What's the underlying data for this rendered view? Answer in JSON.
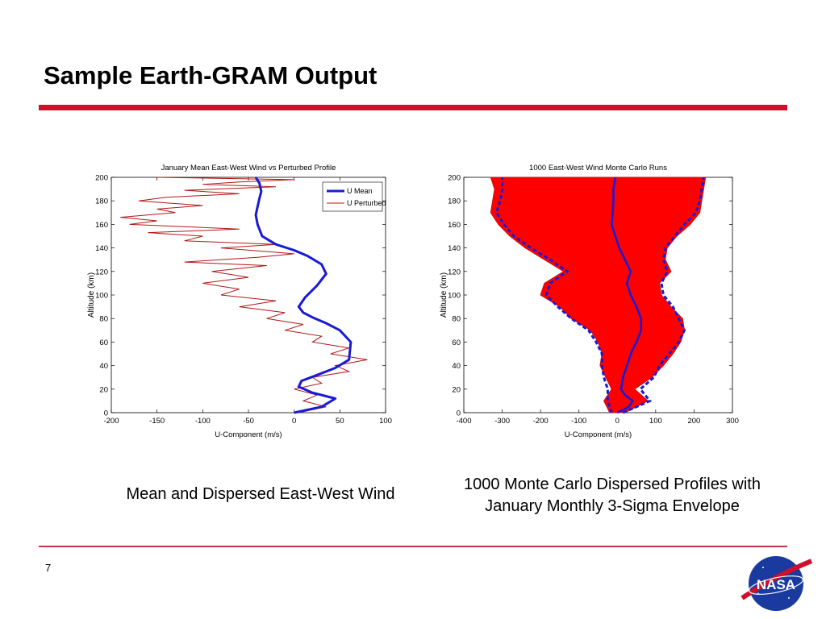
{
  "slide": {
    "title": "Sample Earth-GRAM Output",
    "page_number": "7",
    "caption_left": "Mean and Dispersed East-West Wind",
    "caption_right_line1": "1000 Monte Carlo Dispersed Profiles with",
    "caption_right_line2": "January Monthly 3-Sigma Envelope",
    "logo_text": "NASA"
  },
  "colors": {
    "title_rule": "#d0102a",
    "mean_line": "#1a1ad6",
    "perturbed_line": "#b01818",
    "monte_carlo_fill": "#ff0000",
    "envelope_line": "#1a1ad6"
  },
  "chart_data": [
    {
      "type": "line",
      "title": "January Mean East-West Wind vs Perturbed Profile",
      "xlabel": "U-Component (m/s)",
      "ylabel": "Altitude (km)",
      "xlim": [
        -200,
        100
      ],
      "ylim": [
        0,
        200
      ],
      "xticks": [
        -200,
        -150,
        -100,
        -50,
        0,
        50,
        100
      ],
      "yticks": [
        0,
        20,
        40,
        60,
        80,
        100,
        120,
        140,
        160,
        180,
        200
      ],
      "legend": "top-right",
      "series": [
        {
          "name": "U Mean",
          "color": "#1a1ad6",
          "x": [
            0,
            30,
            45,
            20,
            5,
            8,
            25,
            45,
            60,
            62,
            50,
            35,
            20,
            10,
            5,
            12,
            25,
            35,
            30,
            15,
            0,
            -20,
            -35,
            -40,
            -42,
            -40,
            -38,
            -36,
            -38,
            -42
          ],
          "y": [
            0,
            5,
            12,
            17,
            22,
            27,
            32,
            38,
            45,
            60,
            70,
            76,
            81,
            85,
            90,
            98,
            108,
            118,
            126,
            133,
            138,
            143,
            150,
            160,
            168,
            175,
            182,
            188,
            195,
            200
          ]
        },
        {
          "name": "U Perturbed",
          "color": "#b01818",
          "x": [
            5,
            35,
            10,
            25,
            0,
            30,
            20,
            60,
            45,
            80,
            40,
            60,
            20,
            30,
            -10,
            10,
            -30,
            -10,
            -60,
            -20,
            -80,
            -60,
            -100,
            -50,
            -90,
            -30,
            -120,
            -40,
            0,
            -80,
            -20,
            -120,
            -100,
            -160,
            -60,
            -180,
            -150,
            -190,
            -130,
            -150,
            -100,
            -170,
            -140,
            -60,
            -120,
            -20,
            -100,
            -60,
            0,
            -150
          ],
          "y": [
            0,
            5,
            10,
            15,
            20,
            25,
            30,
            35,
            40,
            45,
            50,
            55,
            60,
            65,
            70,
            75,
            80,
            85,
            90,
            95,
            100,
            105,
            110,
            115,
            120,
            125,
            128,
            132,
            135,
            140,
            143,
            146,
            150,
            153,
            156,
            160,
            163,
            166,
            170,
            173,
            176,
            180,
            183,
            186,
            189,
            192,
            194,
            196,
            198,
            200
          ]
        }
      ]
    },
    {
      "type": "area",
      "title": "1000 East-West Wind Monte Carlo Runs",
      "xlabel": "U-Component (m/s)",
      "ylabel": "Altitude (km)",
      "xlim": [
        -400,
        300
      ],
      "ylim": [
        0,
        200
      ],
      "xticks": [
        -400,
        -300,
        -200,
        -100,
        0,
        100,
        200,
        300
      ],
      "yticks": [
        0,
        20,
        40,
        60,
        80,
        100,
        120,
        140,
        160,
        180,
        200
      ],
      "series": [
        {
          "name": "",
          "color": "#ff0000",
          "y": [
            0,
            10,
            20,
            30,
            40,
            50,
            60,
            70,
            80,
            90,
            100,
            110,
            120,
            130,
            140,
            150,
            160,
            170,
            180,
            190,
            200
          ],
          "lower": [
            -20,
            -35,
            -15,
            -30,
            -45,
            -40,
            -50,
            -70,
            -120,
            -150,
            -200,
            -190,
            -140,
            -190,
            -240,
            -280,
            -310,
            -330,
            -325,
            -320,
            -330
          ],
          "upper": [
            20,
            80,
            45,
            90,
            120,
            145,
            165,
            175,
            170,
            140,
            115,
            110,
            140,
            125,
            130,
            155,
            190,
            215,
            220,
            225,
            230
          ]
        },
        {
          "name": "",
          "color": "#1a1ad6",
          "y": [
            0,
            5,
            10,
            15,
            20,
            30,
            40,
            50,
            60,
            70,
            80,
            90,
            100,
            110,
            120,
            130,
            140,
            150,
            160,
            170,
            180,
            190,
            200
          ],
          "x": [
            0,
            30,
            40,
            20,
            10,
            15,
            25,
            35,
            50,
            62,
            62,
            50,
            35,
            25,
            35,
            20,
            5,
            -5,
            -15,
            -12,
            -10,
            -10,
            -5
          ]
        },
        {
          "name": "",
          "color": "#1a1ad6",
          "y": [
            0,
            10,
            20,
            30,
            40,
            50,
            60,
            70,
            80,
            90,
            100,
            110,
            120,
            130,
            140,
            150,
            160,
            170,
            180,
            190,
            200
          ],
          "x": [
            -15,
            -25,
            -25,
            -35,
            -40,
            -40,
            -55,
            -75,
            -120,
            -155,
            -185,
            -175,
            -130,
            -175,
            -225,
            -270,
            -295,
            -315,
            -305,
            -300,
            -300
          ]
        },
        {
          "name": "",
          "color": "#1a1ad6",
          "y": [
            0,
            10,
            20,
            30,
            40,
            50,
            60,
            70,
            80,
            90,
            100,
            110,
            120,
            130,
            140,
            150,
            160,
            170,
            180,
            190,
            200
          ],
          "x": [
            15,
            85,
            60,
            95,
            110,
            135,
            160,
            175,
            160,
            145,
            120,
            115,
            130,
            120,
            125,
            150,
            175,
            205,
            215,
            220,
            225
          ]
        }
      ]
    }
  ]
}
